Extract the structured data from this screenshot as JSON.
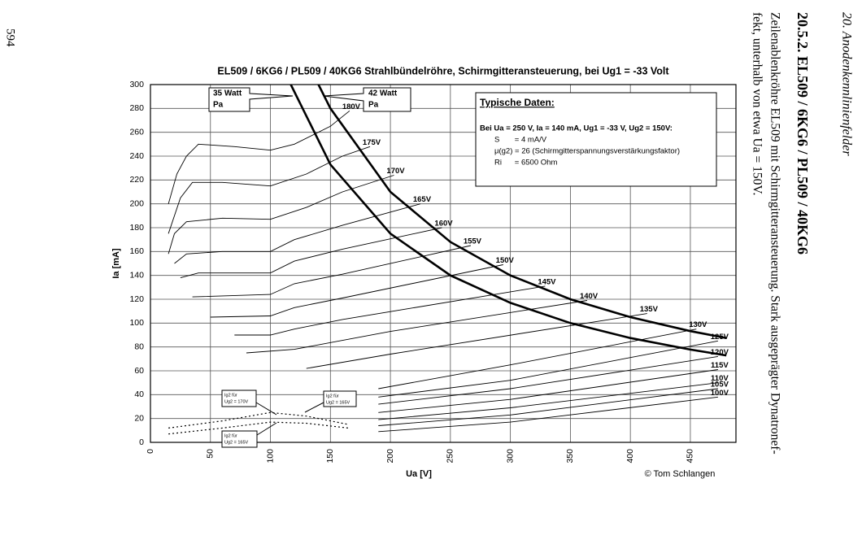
{
  "page": {
    "number": "594",
    "running_header": "20. Anodenkennlinienfelder",
    "section_title": "20.5.2. EL509 / 6KG6 / PL509 / 40KG6",
    "body": [
      "Zeilenablenkröhre EL509 mit Schirmgitteransteuerung. Stark ausgeprägter Dynatronef-",
      "fekt, unterhalb von etwa Ua = 150V."
    ]
  },
  "chart_data": {
    "type": "line",
    "title": "EL509 / 6KG6 / PL509 / 40KG6 Strahlbündelröhre, Schirmgitteransteuerung, bei Ug1 = -33 Volt",
    "x_label": "Ua [V]",
    "y_label": "Ia [mA]",
    "credit": "© Tom Schlangen",
    "xlim": [
      0,
      488
    ],
    "ylim": [
      0,
      300
    ],
    "xticks": [
      0,
      50,
      100,
      150,
      200,
      250,
      300,
      350,
      400,
      450
    ],
    "yticks": [
      0,
      20,
      40,
      60,
      80,
      100,
      120,
      140,
      160,
      180,
      200,
      220,
      240,
      260,
      280,
      300
    ],
    "grid": true,
    "color": "#000000",
    "series": [
      {
        "name": "180V",
        "x": [
          15,
          22,
          30,
          40,
          70,
          100,
          120,
          150,
          166
        ],
        "values": [
          200,
          225,
          240,
          250,
          248,
          245,
          250,
          265,
          278
        ]
      },
      {
        "name": "175V",
        "x": [
          15,
          25,
          35,
          60,
          100,
          130,
          160,
          183
        ],
        "values": [
          175,
          205,
          218,
          218,
          215,
          225,
          240,
          248
        ]
      },
      {
        "name": "170V",
        "x": [
          15,
          20,
          30,
          60,
          100,
          130,
          160,
          203
        ],
        "values": [
          158,
          175,
          185,
          188,
          187,
          197,
          210,
          224
        ]
      },
      {
        "name": "165V",
        "x": [
          20,
          30,
          60,
          100,
          120,
          160,
          225
        ],
        "values": [
          150,
          158,
          160,
          160,
          170,
          182,
          200
        ]
      },
      {
        "name": "160V",
        "x": [
          25,
          40,
          100,
          120,
          160,
          243
        ],
        "values": [
          138,
          142,
          142,
          152,
          162,
          180
        ]
      },
      {
        "name": "155V",
        "x": [
          35,
          100,
          120,
          160,
          267
        ],
        "values": [
          122,
          124,
          133,
          141,
          165
        ]
      },
      {
        "name": "150V",
        "x": [
          50,
          100,
          120,
          160,
          294
        ],
        "values": [
          105,
          106,
          113,
          121,
          149
        ]
      },
      {
        "name": "145V",
        "x": [
          70,
          100,
          120,
          160,
          329
        ],
        "values": [
          90,
          90,
          95,
          103,
          131
        ]
      },
      {
        "name": "140V",
        "x": [
          80,
          120,
          200,
          364
        ],
        "values": [
          75,
          78,
          93,
          119
        ]
      },
      {
        "name": "135V",
        "x": [
          130,
          200,
          414
        ],
        "values": [
          62,
          74,
          108
        ]
      },
      {
        "name": "130V",
        "x": [
          190,
          300,
          455
        ],
        "values": [
          45,
          65,
          95
        ]
      },
      {
        "name": "125V",
        "x": [
          190,
          300,
          473
        ],
        "values": [
          38,
          52,
          85
        ]
      },
      {
        "name": "120V",
        "x": [
          190,
          300,
          473
        ],
        "values": [
          32,
          45,
          72
        ]
      },
      {
        "name": "115V",
        "x": [
          190,
          300,
          473
        ],
        "values": [
          25,
          36,
          61
        ]
      },
      {
        "name": "110V",
        "x": [
          190,
          300,
          473
        ],
        "values": [
          19,
          29,
          50
        ]
      },
      {
        "name": "105V",
        "x": [
          190,
          300,
          473
        ],
        "values": [
          14,
          23,
          45
        ]
      },
      {
        "name": "100V",
        "x": [
          190,
          300,
          473
        ],
        "values": [
          9,
          17,
          38
        ]
      }
    ],
    "power_curves": [
      {
        "label": [
          "35 Watt",
          "Pa"
        ],
        "x": [
          117,
          150,
          200,
          250,
          300,
          350,
          400,
          450,
          480
        ],
        "values": [
          300,
          233,
          175,
          140,
          117,
          100,
          87.5,
          77.8,
          72.9
        ]
      },
      {
        "label": [
          "42 Watt",
          "Pa"
        ],
        "x": [
          140,
          150,
          200,
          250,
          300,
          350,
          400,
          450,
          480
        ],
        "values": [
          300,
          280,
          210,
          168,
          140,
          120,
          105,
          93.3,
          87.5
        ]
      }
    ],
    "ig2_curves": [
      {
        "x": [
          15,
          60,
          100,
          130,
          165
        ],
        "values": [
          12,
          18,
          25,
          22,
          15
        ]
      },
      {
        "x": [
          15,
          60,
          100,
          130,
          165
        ],
        "values": [
          7,
          12,
          17,
          16,
          12
        ]
      }
    ],
    "ig2_notes": [
      [
        "Ig2 für",
        "Ug2 = 170V"
      ],
      [
        "Ig2 für",
        "Ug2 = 165V"
      ],
      [
        "Ig2 für",
        "Ug2 = 165V"
      ]
    ],
    "info_box": {
      "title": "Typische Daten:",
      "lines": [
        "Bei Ua = 250 V, Ia = 140 mA, Ug1 = -33 V, Ug2 = 150V:",
        "S       = 4 mA/V",
        "μ(g2) = 26 (Schirmgitterspannungsverstärkungsfaktor)",
        "Ri      = 6500 Ohm"
      ]
    }
  }
}
